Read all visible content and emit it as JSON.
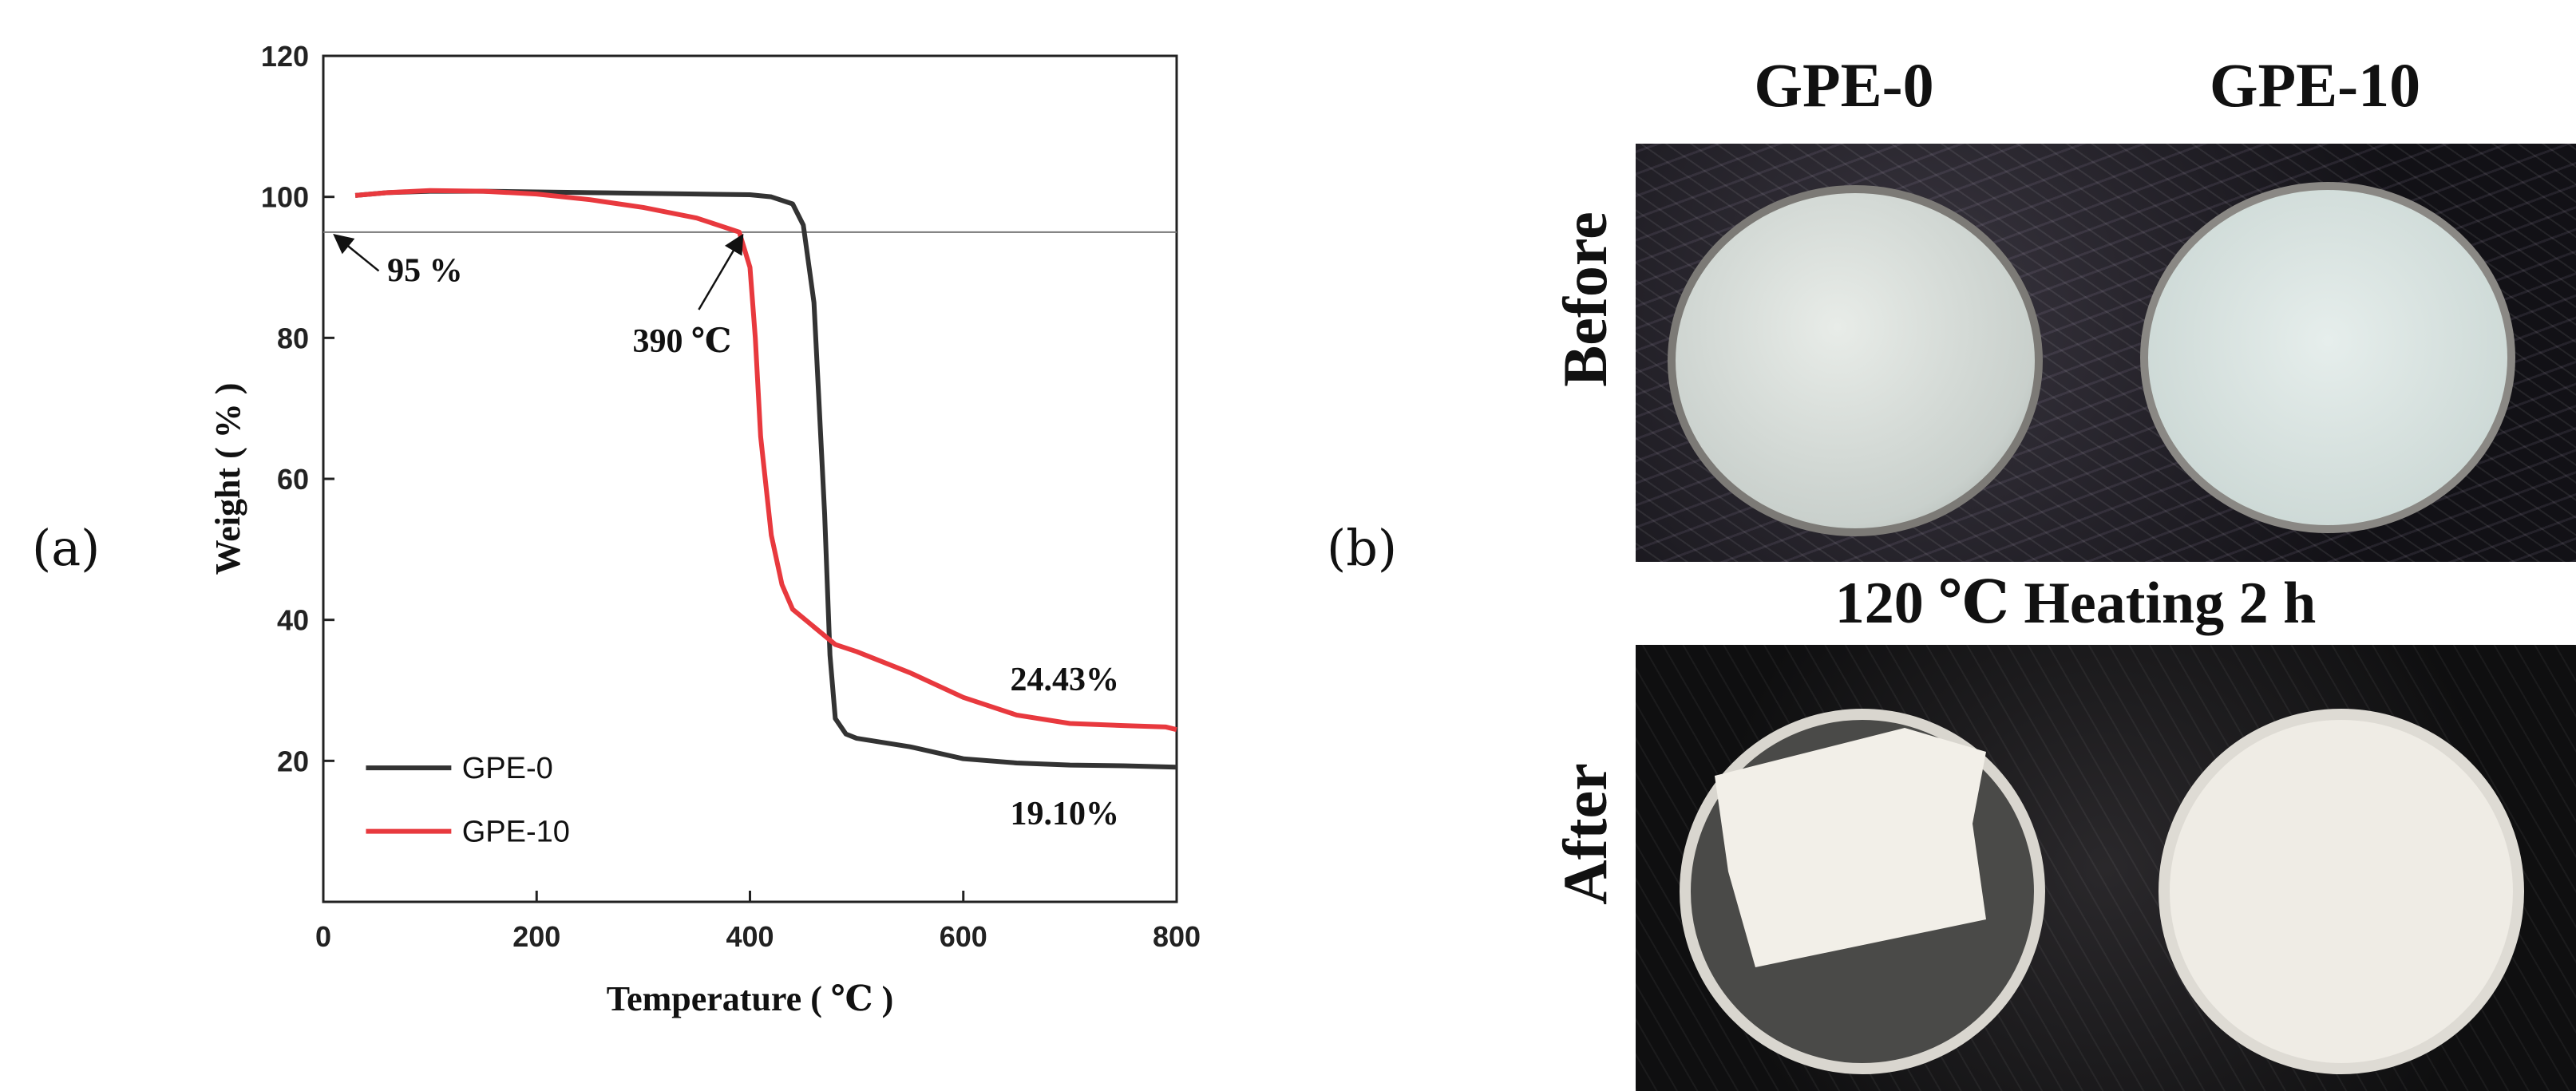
{
  "panel_labels": {
    "a": "(a)",
    "b": "(b)"
  },
  "chart_data": {
    "type": "line",
    "title": "",
    "xlabel": "Temperature ( ℃ )",
    "ylabel": "Weight ( % )",
    "xlim": [
      0,
      800
    ],
    "ylim": [
      0,
      120
    ],
    "xticks": [
      0,
      200,
      400,
      600,
      800
    ],
    "yticks": [
      20,
      40,
      60,
      80,
      100,
      120
    ],
    "grid": false,
    "legend_position": "bottom-left",
    "reference_line": {
      "y": 95
    },
    "series": [
      {
        "name": "GPE-0",
        "color": "#333333",
        "x": [
          30,
          60,
          100,
          150,
          200,
          250,
          300,
          350,
          400,
          420,
          440,
          450,
          460,
          465,
          470,
          475,
          480,
          490,
          500,
          550,
          600,
          650,
          700,
          750,
          800
        ],
        "y": [
          100.2,
          100.6,
          100.8,
          100.8,
          100.7,
          100.6,
          100.5,
          100.4,
          100.3,
          100.0,
          99,
          96,
          85,
          70,
          55,
          35,
          26,
          23.8,
          23.2,
          22.0,
          20.3,
          19.7,
          19.4,
          19.3,
          19.1
        ]
      },
      {
        "name": "GPE-10",
        "color": "#e8393e",
        "x": [
          30,
          60,
          100,
          150,
          200,
          250,
          300,
          350,
          390,
          400,
          405,
          410,
          420,
          430,
          440,
          460,
          480,
          500,
          550,
          600,
          650,
          700,
          750,
          790,
          800
        ],
        "y": [
          100.2,
          100.6,
          100.9,
          100.8,
          100.4,
          99.6,
          98.5,
          97.0,
          95.0,
          90,
          80,
          66,
          52,
          45,
          41.5,
          39,
          36.5,
          35.5,
          32.5,
          29,
          26.5,
          25.3,
          25.0,
          24.8,
          24.43
        ]
      }
    ],
    "annotations": [
      {
        "text": "95 %",
        "x": 60,
        "y": 88
      },
      {
        "text": "390 ℃",
        "x": 290,
        "y": 78
      },
      {
        "text": "24.43%",
        "x": 695,
        "y": 30
      },
      {
        "text": "19.10%",
        "x": 695,
        "y": 11
      }
    ]
  },
  "photos": {
    "col_titles": [
      "GPE-0",
      "GPE-10"
    ],
    "row_before": "Before",
    "row_after": "After",
    "caption": "120 ℃ Heating 2 h"
  }
}
